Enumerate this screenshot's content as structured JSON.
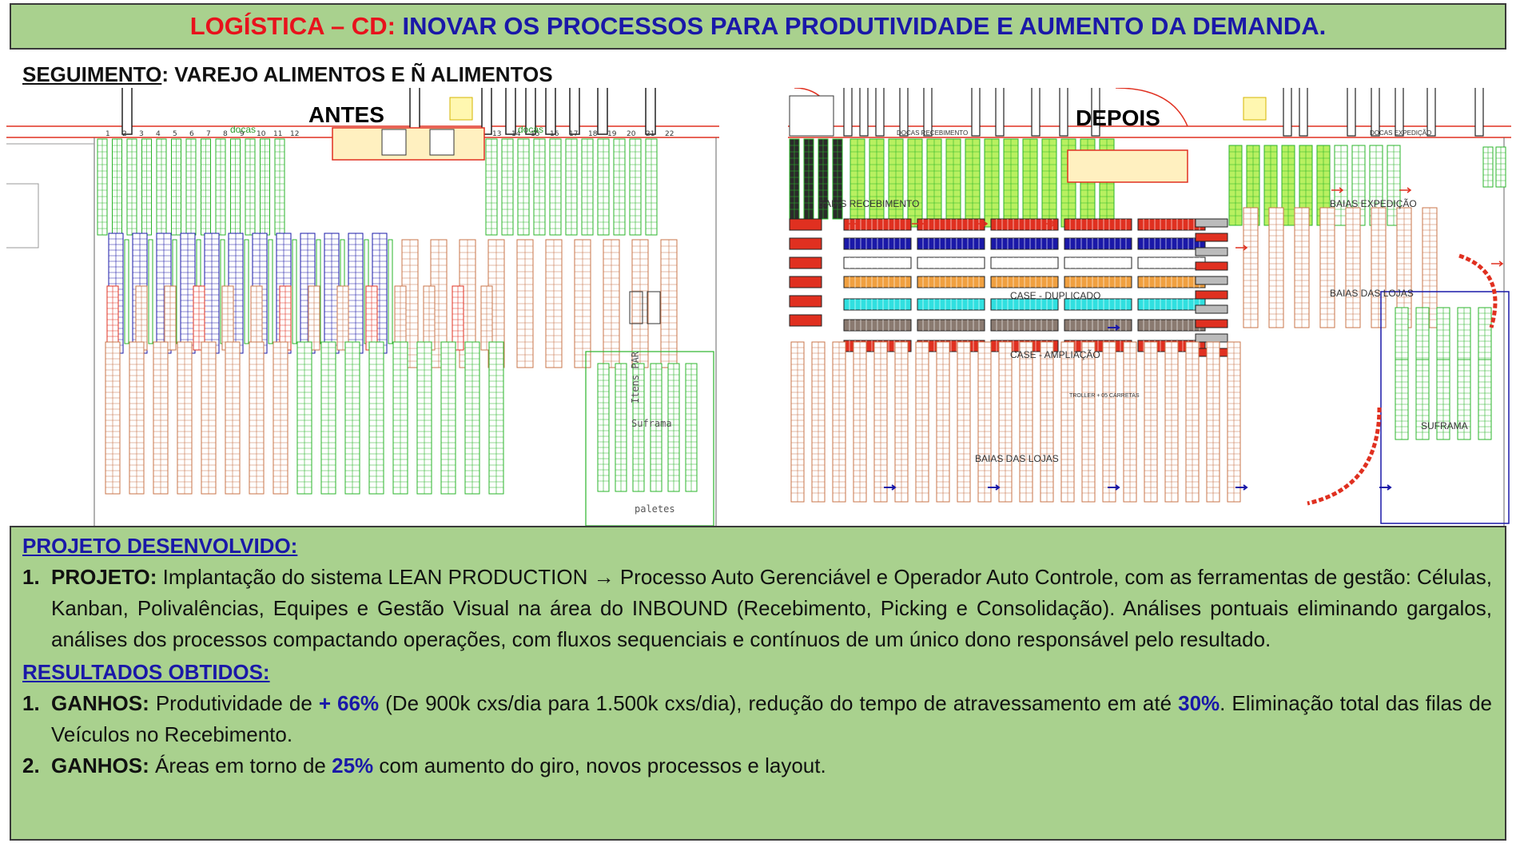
{
  "header": {
    "prefix": "LOGÍSTICA – CD:",
    "title": "INOVAR OS PROCESSOS PARA PRODUTIVIDADE E AUMENTO DA DEMANDA."
  },
  "segment": {
    "label": "SEGUIMENTO",
    "value": ": VAREJO ALIMENTOS E Ñ ALIMENTOS"
  },
  "before": {
    "title": "ANTES",
    "docas": [
      "docas",
      "docas"
    ],
    "dock_numbers": [
      "1",
      "2",
      "3",
      "4",
      "5",
      "6",
      "7",
      "8",
      "9",
      "10",
      "11",
      "12",
      "13",
      "14",
      "15",
      "16",
      "17",
      "18",
      "19",
      "20",
      "21",
      "22"
    ],
    "itens_par": "Itens PAR",
    "suframa": "Suframa",
    "paletes": "paletes"
  },
  "after": {
    "title": "DEPOIS",
    "docas_recebimento": "DOCAS RECEBIMENTO",
    "docas_expedicao": "DOCAS EXPEDIÇÃO",
    "baias_recebimento": "BAIAS RECEBIMENTO",
    "baias_expedicao": "BAIAS EXPEDIÇÃO",
    "baias_lojas_top": "BAIAS DAS LOJAS",
    "case_duplicado": "CASE - DUPLICADO",
    "case_ampliacao": "CASE - AMPLIAÇÃO",
    "troller": "TROLLER + 05 CARRETAS",
    "baias_lojas_bottom": "BAIAS DAS LOJAS",
    "suframa": "SUFRAMA"
  },
  "project": {
    "heading": "PROJETO DESENVOLVIDO:",
    "items": [
      {
        "num": "1.",
        "label": "PROJETO:",
        "text": " Implantação do sistema LEAN PRODUCTION → Processo Auto Gerenciável e Operador Auto Controle, com as ferramentas de gestão: Células, Kanban, Polivalências, Equipes e Gestão Visual na área do INBOUND (Recebimento, Picking e Consolidação). Análises pontuais eliminando gargalos, análises dos processos compactando operações, com fluxos sequenciais e contínuos de um único dono responsável pelo resultado."
      }
    ]
  },
  "results": {
    "heading": "RESULTADOS OBTIDOS:",
    "item1": {
      "num": "1.",
      "label": "GANHOS:",
      "t1": " Produtividade de ",
      "h1": "+ 66%",
      "t2": " (De 900k cxs/dia para 1.500k cxs/dia), redução do tempo de atravessamento em até ",
      "h2": "30%",
      "t3": ". Eliminação total das filas de Veículos no Recebimento."
    },
    "item2": {
      "num": "2.",
      "label": "GANHOS:",
      "t1": " Áreas em torno de ",
      "h1": "25%",
      "t2": " com aumento do giro, novos processos e layout."
    }
  },
  "colors": {
    "header_bg": "#a9d18e",
    "red": "#e8121c",
    "blue": "#1a18a8",
    "rack_green": "#2bb52b",
    "rack_orange": "#c8744a",
    "rack_red": "#e03020"
  }
}
